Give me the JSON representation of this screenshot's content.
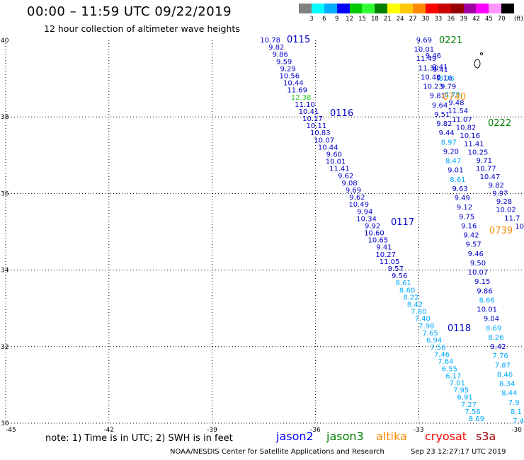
{
  "title": "00:00 – 11:59 UTC 09/22/2019",
  "subtitle": "12 hour collection of altimeter wave heights",
  "legend": {
    "colors": [
      "#808080",
      "#00ffff",
      "#00aaff",
      "#0000ff",
      "#00c800",
      "#32ff32",
      "#008000",
      "#ffff00",
      "#ffc800",
      "#ff8c00",
      "#ff0000",
      "#c80000",
      "#960000",
      "#a000a0",
      "#ff00ff",
      "#ff96ff",
      "#000000"
    ],
    "labels": [
      "3",
      "6",
      "9",
      "12",
      "15",
      "18",
      "21",
      "24",
      "27",
      "30",
      "33",
      "36",
      "39",
      "42",
      "45",
      "70"
    ],
    "unit": "(ft)"
  },
  "map": {
    "lon_range": [
      -45,
      -30
    ],
    "lat_range": [
      30,
      40
    ],
    "lon_ticks": [
      "-45",
      "-42",
      "-39",
      "-36",
      "-33",
      "-30"
    ],
    "lat_ticks": [
      "40",
      "38",
      "36",
      "34",
      "32",
      "30"
    ],
    "grid": "dotted"
  },
  "tracks": [
    {
      "id": "0115",
      "color": "#0000cc"
    },
    {
      "id": "0116",
      "color": "#0000cc"
    },
    {
      "id": "0117",
      "color": "#0000cc"
    },
    {
      "id": "0118",
      "color": "#0000cc"
    },
    {
      "id": "0221",
      "color": "#008000"
    },
    {
      "id": "0222",
      "color": "#008000"
    },
    {
      "id": "0740",
      "color": "#ff8c00"
    },
    {
      "id": "0739",
      "color": "#ff8c00"
    }
  ],
  "footer": {
    "note": "note:  1) Time is in UTC;  2) SWH is in feet",
    "satellites": [
      {
        "name": "jason2",
        "color": "#0000ff"
      },
      {
        "name": "jason3",
        "color": "#008000"
      },
      {
        "name": "altika",
        "color": "#ff8c00"
      },
      {
        "name": "cryosat",
        "color": "#ff0000"
      },
      {
        "name": "s3a",
        "color": "#a00000"
      }
    ],
    "credit": "NOAA/NESDIS Center for Satellite Applications and Research",
    "timestamp": "Sep 23 12:27:17 UTC 2019"
  },
  "observations": {
    "track_A": [
      "10.78",
      "9.82",
      "9.86",
      "9.59",
      "9.29",
      "10.56",
      "10.44",
      "11.69",
      "12.38",
      "11.10",
      "10.41",
      "10.17",
      "10.11",
      "10.83",
      "10.07",
      "10.44",
      "9.60",
      "10.01",
      "11.41",
      "9.62",
      "9.08",
      "9.69",
      "9.62",
      "10.49",
      "9.94",
      "10.34",
      "9.92",
      "10.60",
      "10.65",
      "9.41",
      "10.27",
      "11.05",
      "9.57",
      "9.56",
      "8.61",
      "8.60",
      "8.22",
      "8.42",
      "7.80",
      "7.40",
      "7.98",
      "7.65",
      "6.94",
      "7.56",
      "7.46",
      "7.64",
      "6.55",
      "6.17",
      "7.01",
      "7.95",
      "6.91",
      "7.27",
      "7.56",
      "8.69"
    ],
    "track_B": [
      "9.69",
      "10.01",
      "11.49",
      "11.30",
      "10.48",
      "10.23",
      "9.81",
      "9.64",
      "9.51",
      "9.82",
      "9.44",
      "8.97",
      "9.20",
      "8.47",
      "9.01",
      "8.61",
      "9.63",
      "9.49",
      "9.12",
      "9.75",
      "9.16",
      "9.42",
      "9.57",
      "9.46",
      "9.50",
      "10.07",
      "9.15",
      "9.86",
      "8.66",
      "10.01",
      "9.04",
      "8.69",
      "8.26",
      "9.42",
      "7.76",
      "7.87",
      "8.46",
      "8.34",
      "8.44",
      "7.9",
      "8.1",
      "7.4"
    ],
    "track_C": [
      "9.41",
      "9.16",
      "9.79",
      "8.79",
      "9.48",
      "11.54",
      "11.07",
      "10.82",
      "10.16",
      "11.41",
      "10.25",
      "9.71",
      "10.77",
      "10.47",
      "9.82",
      "9.97",
      "9.28",
      "10.02",
      "11.7",
      "10"
    ],
    "track_D": [
      "9.46",
      "9.41",
      "8.75"
    ]
  }
}
